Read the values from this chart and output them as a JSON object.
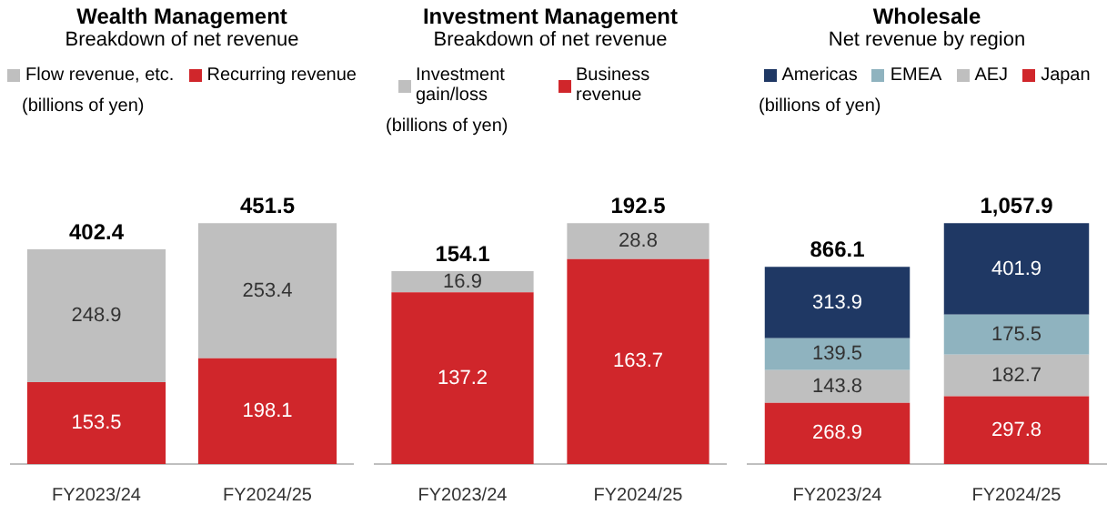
{
  "chart_data": [
    {
      "type": "bar",
      "stacked": true,
      "title": "Wealth Management",
      "subtitle": "Breakdown of net revenue",
      "annotations": [
        "(billions of yen)"
      ],
      "categories": [
        "FY2023/24",
        "FY2024/25"
      ],
      "series": [
        {
          "name": "Recurring revenue",
          "color": "#d0262b",
          "values": [
            153.5,
            198.1
          ]
        },
        {
          "name": "Flow revenue, etc.",
          "color": "#bfbfbf",
          "values": [
            248.9,
            253.4
          ]
        }
      ],
      "data_labels": true,
      "totals": [
        "402.4",
        "451.5"
      ],
      "legend": "top",
      "tick_labels": "x"
    },
    {
      "type": "bar",
      "stacked": true,
      "title": "Investment Management",
      "subtitle": "Breakdown of net revenue",
      "annotations": [
        "(billions of yen)"
      ],
      "categories": [
        "FY2023/24",
        "FY2024/25"
      ],
      "series": [
        {
          "name": "Business revenue",
          "color": "#d0262b",
          "values": [
            137.2,
            163.7
          ]
        },
        {
          "name": "Investment gain/loss",
          "color": "#bfbfbf",
          "values": [
            16.9,
            28.8
          ]
        }
      ],
      "data_labels": true,
      "totals": [
        "154.1",
        "192.5"
      ],
      "legend": "top",
      "tick_labels": "x"
    },
    {
      "type": "bar",
      "stacked": true,
      "title": "Wholesale",
      "subtitle": "Net revenue by region",
      "annotations": [
        "(billions of yen)"
      ],
      "categories": [
        "FY2023/24",
        "FY2024/25"
      ],
      "series": [
        {
          "name": "Japan",
          "color": "#d0262b",
          "values": [
            268.9,
            297.8
          ]
        },
        {
          "name": "AEJ",
          "color": "#bfbfbf",
          "values": [
            143.8,
            182.7
          ]
        },
        {
          "name": "EMEA",
          "color": "#8fb3bf",
          "values": [
            139.5,
            175.5
          ]
        },
        {
          "name": "Americas",
          "color": "#1f3864",
          "values": [
            313.9,
            401.9
          ]
        }
      ],
      "data_labels": true,
      "totals": [
        "866.1",
        "1,057.9"
      ],
      "legend": "top",
      "tick_labels": "x"
    }
  ]
}
